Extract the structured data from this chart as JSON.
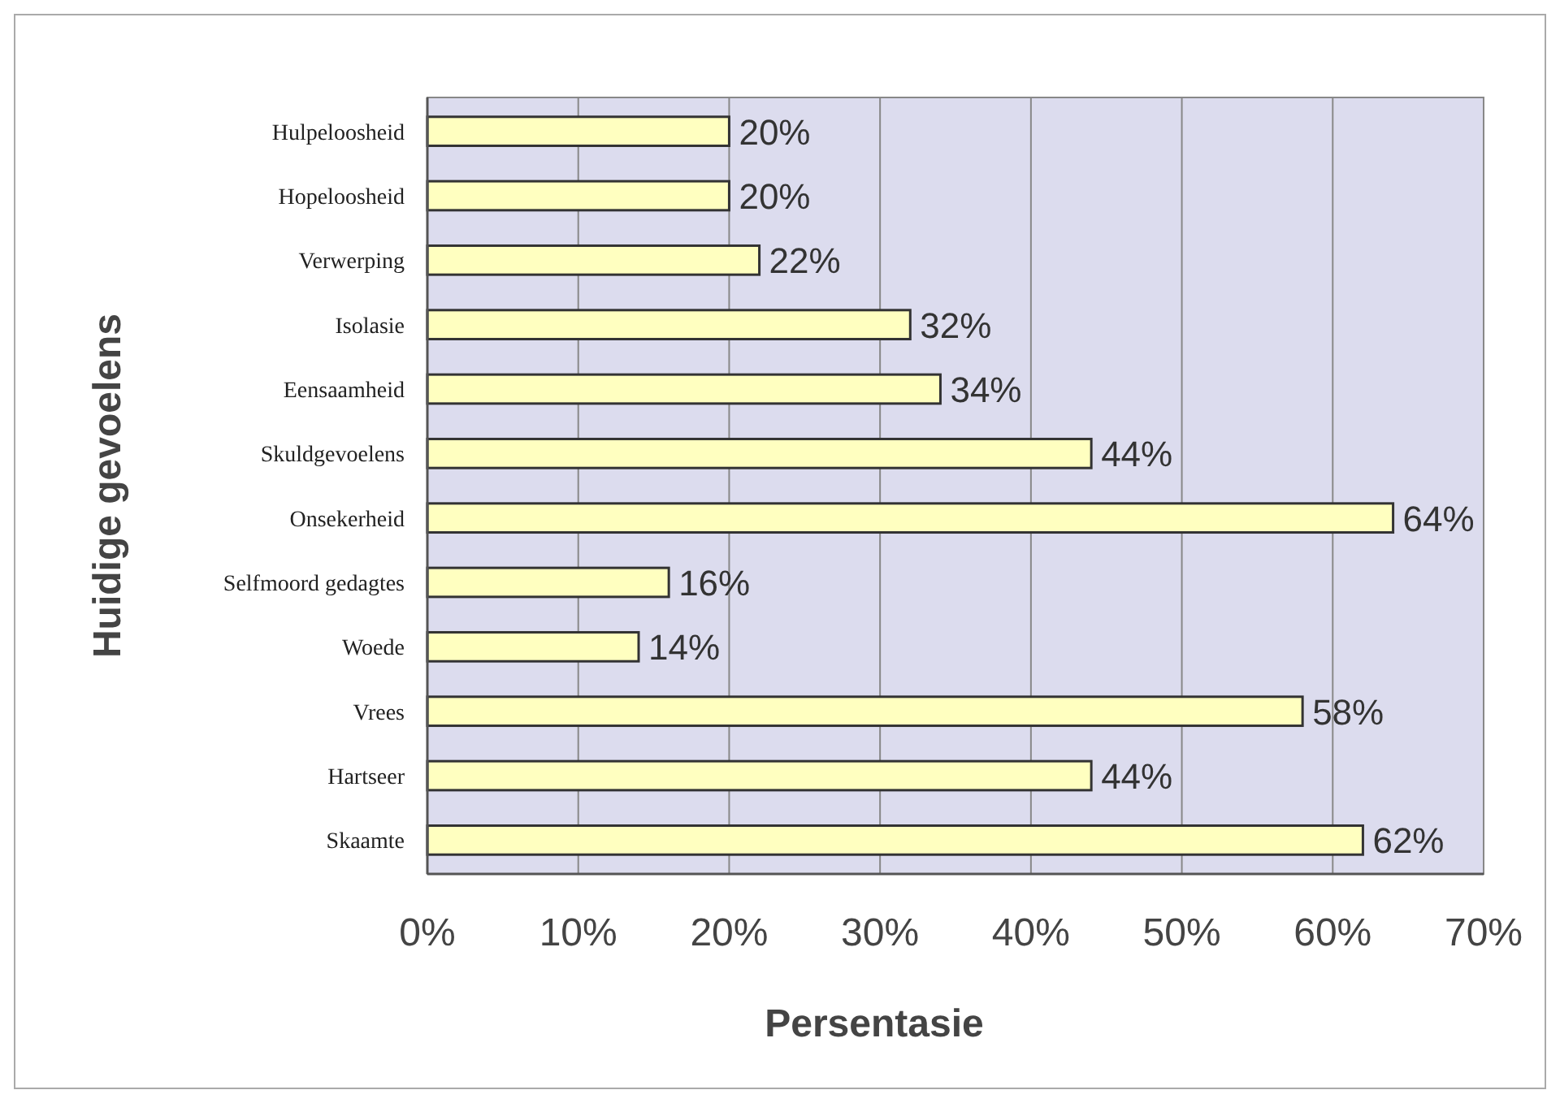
{
  "chart_data": {
    "type": "bar",
    "orientation": "horizontal",
    "xlabel": "Persentasie",
    "ylabel": "Huidige gevoelens",
    "categories": [
      "Hulpeloosheid",
      "Hopeloosheid",
      "Verwerping",
      "Isolasie",
      "Eensaamheid",
      "Skuldgevoelens",
      "Onsekerheid",
      "Selfmoord gedagtes",
      "Woede",
      "Vrees",
      "Hartseer",
      "Skaamte"
    ],
    "values": [
      20,
      20,
      22,
      32,
      34,
      44,
      64,
      16,
      14,
      58,
      44,
      62
    ],
    "value_labels": [
      "20%",
      "20%",
      "22%",
      "32%",
      "34%",
      "44%",
      "64%",
      "16%",
      "14%",
      "58%",
      "44%",
      "62%"
    ],
    "color": "#ffffc0",
    "xlim": [
      0,
      70
    ],
    "xticks": [
      {
        "value": 0,
        "label": "0%"
      },
      {
        "value": 10,
        "label": "10%"
      },
      {
        "value": 20,
        "label": "20%"
      },
      {
        "value": 30,
        "label": "30%"
      },
      {
        "value": 40,
        "label": "40%"
      },
      {
        "value": 50,
        "label": "50%"
      },
      {
        "value": 60,
        "label": "60%"
      },
      {
        "value": 70,
        "label": "70%"
      }
    ],
    "grid": "x"
  }
}
